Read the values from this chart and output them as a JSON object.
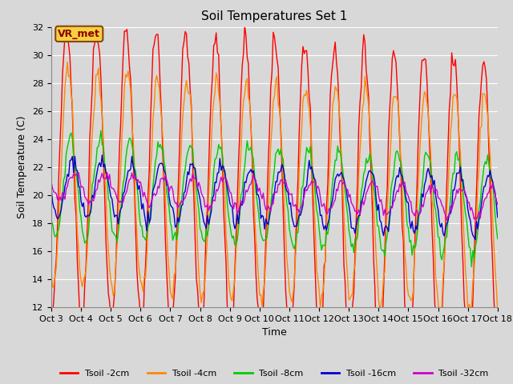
{
  "title": "Soil Temperatures Set 1",
  "xlabel": "Time",
  "ylabel": "Soil Temperature (C)",
  "ylim": [
    12,
    32
  ],
  "yticks": [
    12,
    14,
    16,
    18,
    20,
    22,
    24,
    26,
    28,
    30,
    32
  ],
  "xtick_labels": [
    "Oct 3",
    "Oct 4",
    "Oct 5",
    "Oct 6",
    "Oct 7",
    "Oct 8",
    "Oct 9",
    "Oct 10",
    "Oct 11",
    "Oct 12",
    "Oct 13",
    "Oct 14",
    "Oct 15",
    "Oct 16",
    "Oct 17",
    "Oct 18"
  ],
  "background_color": "#d8d8d8",
  "plot_bg_color": "#d8d8d8",
  "annotation_text": "VR_met",
  "annotation_bg": "#f5d040",
  "annotation_border": "#8B4513",
  "series": [
    {
      "label": "Tsoil -2cm",
      "color": "#ff0000"
    },
    {
      "label": "Tsoil -4cm",
      "color": "#ff8800"
    },
    {
      "label": "Tsoil -8cm",
      "color": "#00cc00"
    },
    {
      "label": "Tsoil -16cm",
      "color": "#0000cc"
    },
    {
      "label": "Tsoil -32cm",
      "color": "#cc00cc"
    }
  ],
  "n_days": 15,
  "title_fontsize": 11,
  "axis_label_fontsize": 9,
  "tick_fontsize": 8,
  "legend_fontsize": 8,
  "grid_color": "#ffffff",
  "grid_linewidth": 0.8,
  "line_linewidth": 1.0
}
